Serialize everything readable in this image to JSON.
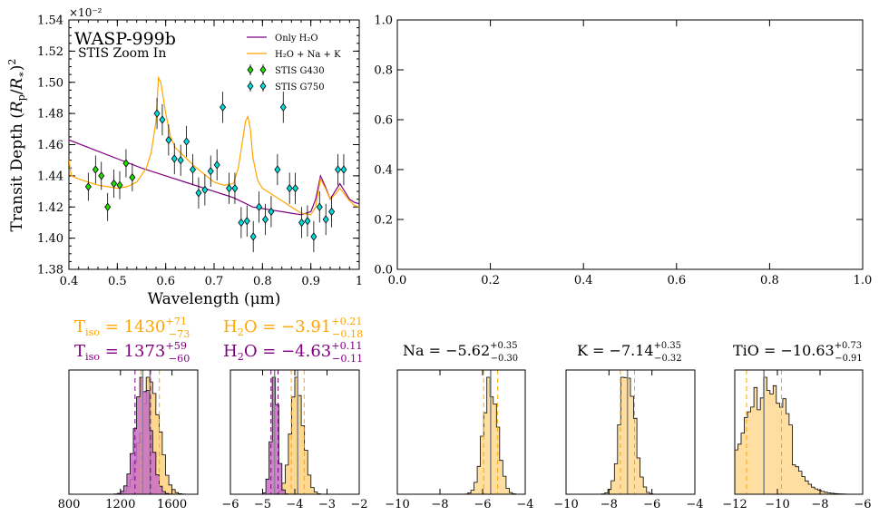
{
  "main_plot": {
    "title": "WASP-999b",
    "subtitle": "STIS Zoom In",
    "xlabel": "Wavelength (μm)",
    "ylabel": "Transit Depth (Rp/R*)²",
    "scale_note": "×10⁻²"
  },
  "chart_data": [
    {
      "id": "spectrum",
      "type": "line",
      "title": "WASP-999b",
      "subtitle": "STIS Zoom In",
      "xlabel": "Wavelength (μm)",
      "ylabel": "Transit Depth (Rp/R*)²",
      "xlim": [
        0.4,
        1.0
      ],
      "ylim": [
        1.38,
        1.54
      ],
      "y_scale_multiplier": "×10⁻²",
      "xticks": [
        "0.4",
        "0.5",
        "0.6",
        "0.7",
        "0.8",
        "0.9",
        "1"
      ],
      "yticks": [
        "1.38",
        "1.40",
        "1.42",
        "1.44",
        "1.46",
        "1.48",
        "1.50",
        "1.52",
        "1.54"
      ],
      "legend_position": "top-right",
      "models": [
        {
          "name": "Only H₂O",
          "color": "#800080",
          "x": [
            0.4,
            0.45,
            0.5,
            0.55,
            0.6,
            0.65,
            0.7,
            0.72,
            0.74,
            0.76,
            0.78,
            0.8,
            0.82,
            0.84,
            0.86,
            0.88,
            0.9,
            0.91,
            0.92,
            0.93,
            0.94,
            0.95,
            0.96,
            0.97,
            0.98,
            0.99,
            1.0
          ],
          "y": [
            1.463,
            1.457,
            1.451,
            1.445,
            1.44,
            1.435,
            1.43,
            1.428,
            1.426,
            1.423,
            1.42,
            1.419,
            1.418,
            1.417,
            1.416,
            1.415,
            1.417,
            1.425,
            1.44,
            1.433,
            1.425,
            1.43,
            1.435,
            1.43,
            1.425,
            1.423,
            1.422
          ]
        },
        {
          "name": "H₂O + Na + K",
          "color": "#ffa500",
          "x": [
            0.4,
            0.405,
            0.42,
            0.44,
            0.46,
            0.48,
            0.5,
            0.52,
            0.54,
            0.56,
            0.57,
            0.58,
            0.585,
            0.59,
            0.6,
            0.61,
            0.62,
            0.64,
            0.66,
            0.68,
            0.7,
            0.72,
            0.74,
            0.75,
            0.76,
            0.765,
            0.77,
            0.775,
            0.78,
            0.79,
            0.8,
            0.82,
            0.84,
            0.86,
            0.88,
            0.9,
            0.91,
            0.92,
            0.93,
            0.94,
            0.95,
            0.96,
            0.97,
            0.98,
            0.99,
            1.0
          ],
          "y": [
            1.45,
            1.44,
            1.438,
            1.436,
            1.434,
            1.433,
            1.432,
            1.433,
            1.436,
            1.445,
            1.455,
            1.475,
            1.503,
            1.5,
            1.48,
            1.465,
            1.458,
            1.452,
            1.446,
            1.441,
            1.436,
            1.434,
            1.435,
            1.445,
            1.465,
            1.475,
            1.478,
            1.47,
            1.452,
            1.437,
            1.432,
            1.428,
            1.424,
            1.42,
            1.416,
            1.415,
            1.42,
            1.438,
            1.432,
            1.425,
            1.428,
            1.432,
            1.428,
            1.424,
            1.421,
            1.42
          ]
        }
      ],
      "series": [
        {
          "name": "STIS G430",
          "color": "#22dd00",
          "x": [
            0.44,
            0.455,
            0.467,
            0.48,
            0.493,
            0.505,
            0.518,
            0.531
          ],
          "y": [
            1.433,
            1.444,
            1.44,
            1.42,
            1.435,
            1.434,
            1.448,
            1.439
          ],
          "yerr": [
            0.009,
            0.009,
            0.009,
            0.009,
            0.009,
            0.009,
            0.009,
            0.009
          ]
        },
        {
          "name": "STIS G750",
          "color": "#00dddd",
          "x": [
            0.582,
            0.593,
            0.606,
            0.618,
            0.631,
            0.643,
            0.656,
            0.668,
            0.681,
            0.693,
            0.706,
            0.718,
            0.731,
            0.743,
            0.756,
            0.768,
            0.781,
            0.793,
            0.806,
            0.818,
            0.831,
            0.843,
            0.856,
            0.868,
            0.881,
            0.893,
            0.906,
            0.918,
            0.931,
            0.943,
            0.956,
            0.968
          ],
          "y": [
            1.48,
            1.476,
            1.463,
            1.451,
            1.45,
            1.462,
            1.444,
            1.429,
            1.431,
            1.443,
            1.447,
            1.484,
            1.432,
            1.432,
            1.41,
            1.411,
            1.401,
            1.42,
            1.412,
            1.417,
            1.444,
            1.484,
            1.432,
            1.432,
            1.41,
            1.411,
            1.401,
            1.42,
            1.412,
            1.417,
            1.444,
            1.444
          ],
          "yerr": [
            0.01,
            0.01,
            0.01,
            0.01,
            0.01,
            0.01,
            0.01,
            0.01,
            0.01,
            0.01,
            0.01,
            0.01,
            0.01,
            0.01,
            0.01,
            0.01,
            0.01,
            0.01,
            0.01,
            0.01,
            0.01,
            0.01,
            0.01,
            0.01,
            0.01,
            0.01,
            0.01,
            0.01,
            0.01,
            0.01,
            0.01,
            0.01
          ]
        }
      ]
    },
    {
      "id": "empty",
      "type": "line",
      "xlim": [
        0.0,
        1.0
      ],
      "ylim": [
        0.0,
        1.0
      ],
      "xticks": [
        "0.0",
        "0.2",
        "0.4",
        "0.6",
        "0.8",
        "1.0"
      ],
      "yticks": [
        "0.0",
        "0.2",
        "0.4",
        "0.6",
        "0.8",
        "1.0"
      ],
      "series": []
    },
    {
      "id": "hist_tiso",
      "type": "bar",
      "label_lines": [
        {
          "text": "T",
          "sub": "iso",
          "eq": " = 1430",
          "sup": "+71",
          "subv": "−73",
          "color": "#ffa500"
        },
        {
          "text": "T",
          "sub": "iso",
          "eq": " = 1373",
          "sup": "+59",
          "subv": "−60",
          "color": "#800080"
        }
      ],
      "xlim": [
        800,
        1800
      ],
      "xticks": [
        "800",
        "1200",
        "1600"
      ],
      "histograms": [
        {
          "color": "#ffa500",
          "mean": 1430,
          "sigma": 72
        },
        {
          "color": "#800080",
          "mean": 1373,
          "sigma": 60
        }
      ],
      "median_line": 1400
    },
    {
      "id": "hist_h2o",
      "type": "bar",
      "label_lines": [
        {
          "text": "H",
          "sub": "2",
          "post": "O",
          "eq": " = −3.91",
          "sup": "+0.21",
          "subv": "−0.18",
          "color": "#ffa500"
        },
        {
          "text": "H",
          "sub": "2",
          "post": "O",
          "eq": " = −4.63",
          "sup": "+0.11",
          "subv": "−0.11",
          "color": "#800080"
        }
      ],
      "xlim": [
        -6,
        -2
      ],
      "xticks": [
        "−6",
        "−5",
        "−4",
        "−3",
        "−2"
      ],
      "histograms": [
        {
          "color": "#ffa500",
          "mean": -3.91,
          "sigma": 0.2
        },
        {
          "color": "#800080",
          "mean": -4.63,
          "sigma": 0.11
        }
      ]
    },
    {
      "id": "hist_na",
      "type": "bar",
      "label_lines": [
        {
          "text": "Na",
          "eq": " = −5.62",
          "sup": "+0.35",
          "subv": "−0.30",
          "color": "#000000"
        }
      ],
      "xlim": [
        -10,
        -4
      ],
      "xticks": [
        "−10",
        "−8",
        "−6",
        "−4"
      ],
      "histograms": [
        {
          "color": "#ffa500",
          "mean": -5.62,
          "sigma": 0.33
        }
      ]
    },
    {
      "id": "hist_k",
      "type": "bar",
      "label_lines": [
        {
          "text": "K",
          "eq": " = −7.14",
          "sup": "+0.35",
          "subv": "−0.32",
          "color": "#000000"
        }
      ],
      "xlim": [
        -10,
        -4
      ],
      "xticks": [
        "−10",
        "−8",
        "−6",
        "−4"
      ],
      "histograms": [
        {
          "color": "#ffa500",
          "mean": -7.14,
          "sigma": 0.33
        }
      ]
    },
    {
      "id": "hist_tio",
      "type": "bar",
      "label_lines": [
        {
          "text": "TiO",
          "eq": " = −10.63",
          "sup": "+0.73",
          "subv": "−0.91",
          "color": "#000000"
        }
      ],
      "xlim": [
        -12,
        -6
      ],
      "xticks": [
        "−12",
        "−10",
        "−8",
        "−6"
      ],
      "histograms": [
        {
          "color": "#ffa500",
          "mean": -10.63,
          "sigma": 0.82,
          "skew": true
        }
      ]
    }
  ],
  "colors": {
    "orange": "#ffa500",
    "purple": "#800080",
    "g430": "#22dd00",
    "g750": "#00dddd",
    "hist_orange_fill": "#ffd890",
    "hist_purple_fill": "#c86ec8",
    "hist_overlap_fill": "#c8615c",
    "median": "#888888"
  }
}
